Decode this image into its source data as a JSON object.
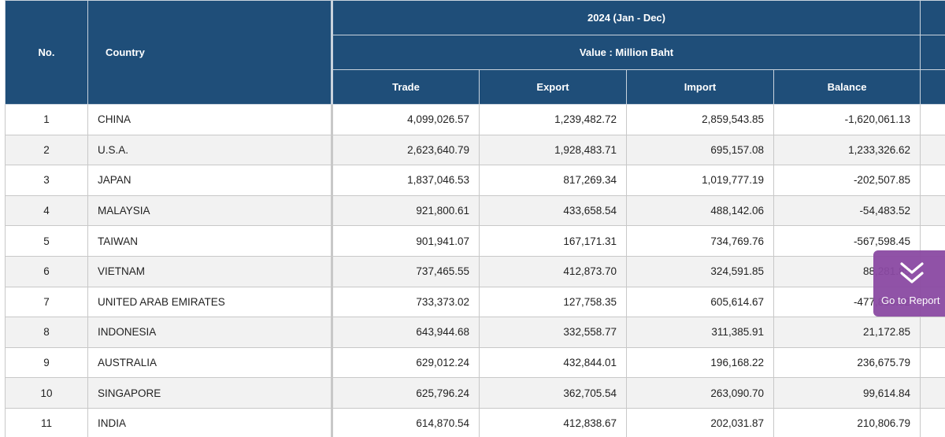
{
  "table": {
    "period": "2024 (Jan - Dec)",
    "unit": "Value : Million Baht",
    "headers": {
      "no": "No.",
      "country": "Country",
      "trade": "Trade",
      "export": "Export",
      "import": "Import",
      "balance": "Balance"
    },
    "rows": [
      {
        "no": "1",
        "country": "CHINA",
        "trade": "4,099,026.57",
        "export": "1,239,482.72",
        "import": "2,859,543.85",
        "balance": "-1,620,061.13"
      },
      {
        "no": "2",
        "country": "U.S.A.",
        "trade": "2,623,640.79",
        "export": "1,928,483.71",
        "import": "695,157.08",
        "balance": "1,233,326.62"
      },
      {
        "no": "3",
        "country": "JAPAN",
        "trade": "1,837,046.53",
        "export": "817,269.34",
        "import": "1,019,777.19",
        "balance": "-202,507.85"
      },
      {
        "no": "4",
        "country": "MALAYSIA",
        "trade": "921,800.61",
        "export": "433,658.54",
        "import": "488,142.06",
        "balance": "-54,483.52"
      },
      {
        "no": "5",
        "country": "TAIWAN",
        "trade": "901,941.07",
        "export": "167,171.31",
        "import": "734,769.76",
        "balance": "-567,598.45"
      },
      {
        "no": "6",
        "country": "VIETNAM",
        "trade": "737,465.55",
        "export": "412,873.70",
        "import": "324,591.85",
        "balance": "88,281.85"
      },
      {
        "no": "7",
        "country": "UNITED ARAB EMIRATES",
        "trade": "733,373.02",
        "export": "127,758.35",
        "import": "605,614.67",
        "balance": "-477,856.32"
      },
      {
        "no": "8",
        "country": "INDONESIA",
        "trade": "643,944.68",
        "export": "332,558.77",
        "import": "311,385.91",
        "balance": "21,172.85"
      },
      {
        "no": "9",
        "country": "AUSTRALIA",
        "trade": "629,012.24",
        "export": "432,844.01",
        "import": "196,168.22",
        "balance": "236,675.79"
      },
      {
        "no": "10",
        "country": "SINGAPORE",
        "trade": "625,796.24",
        "export": "362,705.54",
        "import": "263,090.70",
        "balance": "99,614.84"
      },
      {
        "no": "11",
        "country": "INDIA",
        "trade": "614,870.54",
        "export": "412,838.67",
        "import": "202,031.87",
        "balance": "210,806.79"
      }
    ]
  },
  "go_report": {
    "label": "Go to Report",
    "icon": "double-chevron-down-icon",
    "color": "#8b4aa3"
  },
  "colors": {
    "header_bg": "#1f4e79",
    "row_alt": "#f2f2f2"
  }
}
